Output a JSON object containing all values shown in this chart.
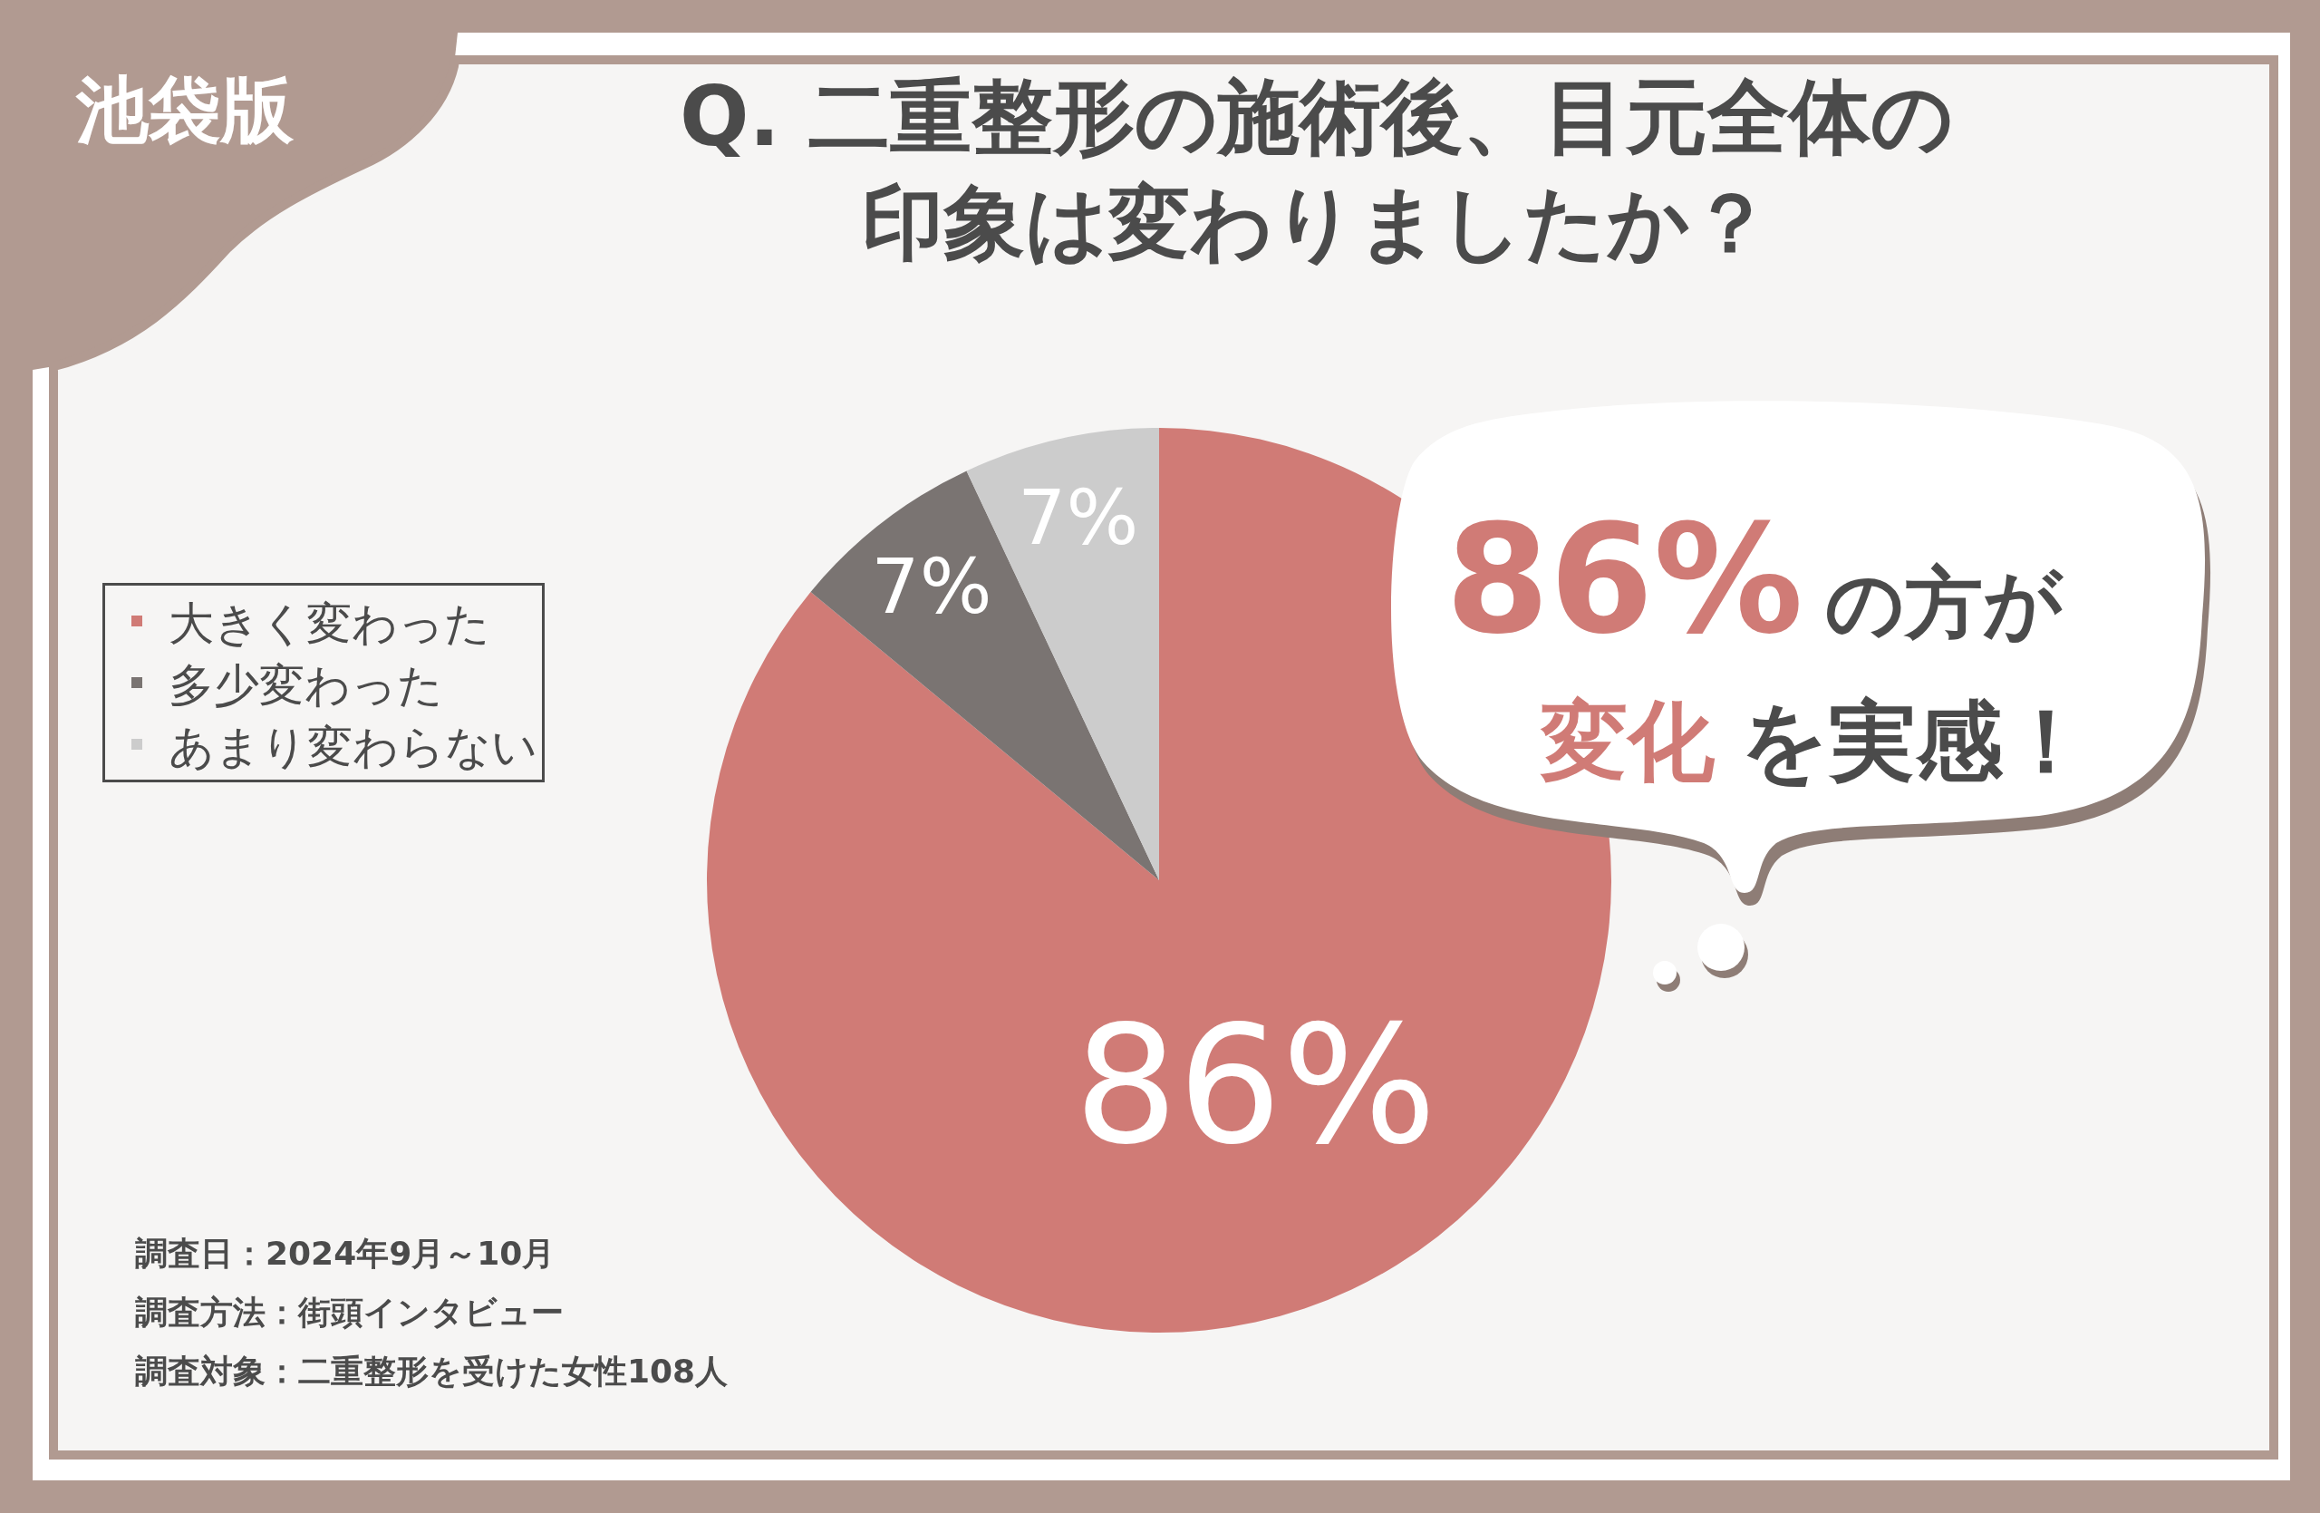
{
  "chart_data": {
    "type": "pie",
    "title": "Q. 二重整形の施術後、目元全体の印象は変わりましたか？",
    "categories": [
      "大きく変わった",
      "多少変わった",
      "あまり変わらない"
    ],
    "values": [
      86,
      7,
      7
    ],
    "colors": [
      "#d07b76",
      "#7a7472",
      "#cccccc"
    ],
    "value_labels": [
      "86%",
      "7%",
      "7%"
    ],
    "legend": "left",
    "annotations": [
      "池袋版",
      "86%",
      "の方が",
      "変化",
      "を実感！",
      "調査日：2024年9月～10月",
      "調査方法：街頭インタビュー",
      "調査対象：二重整形を受けた女性108人"
    ]
  }
}
